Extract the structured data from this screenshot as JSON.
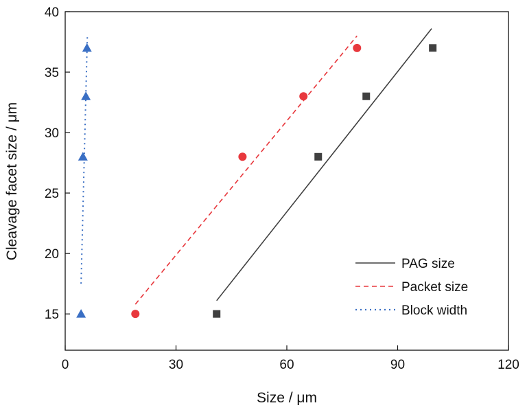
{
  "chart_data": {
    "type": "scatter",
    "xlabel": "Size / μm",
    "ylabel": "Cleavage facet size / μm",
    "xlim": [
      0,
      120
    ],
    "ylim": [
      12,
      40
    ],
    "xticks": [
      "0",
      "30",
      "60",
      "90",
      "120"
    ],
    "yticks": [
      "15",
      "20",
      "25",
      "30",
      "35",
      "40"
    ],
    "grid": false,
    "legend_position": "bottom-right",
    "series": [
      {
        "name": "PAG size",
        "marker": "square",
        "color": "#404040",
        "line_style": "solid",
        "points": [
          [
            41,
            15
          ],
          [
            68.5,
            28
          ],
          [
            81.5,
            33
          ],
          [
            99.5,
            37
          ]
        ],
        "fit_line": [
          [
            41,
            16.1
          ],
          [
            99.2,
            38.6
          ]
        ]
      },
      {
        "name": "Packet size",
        "marker": "circle",
        "color": "#e8383d",
        "line_style": "dashed",
        "points": [
          [
            19,
            15
          ],
          [
            48,
            28
          ],
          [
            64.5,
            33
          ],
          [
            79,
            37
          ]
        ],
        "fit_line": [
          [
            19,
            15.8
          ],
          [
            79,
            38
          ]
        ]
      },
      {
        "name": "Block width",
        "marker": "triangle",
        "color": "#3a6fc4",
        "line_style": "dotted",
        "points": [
          [
            4.3,
            15
          ],
          [
            4.8,
            28
          ],
          [
            5.6,
            33
          ],
          [
            5.9,
            37
          ]
        ],
        "fit_line": [
          [
            4.3,
            17.5
          ],
          [
            6.0,
            38
          ]
        ]
      }
    ]
  }
}
